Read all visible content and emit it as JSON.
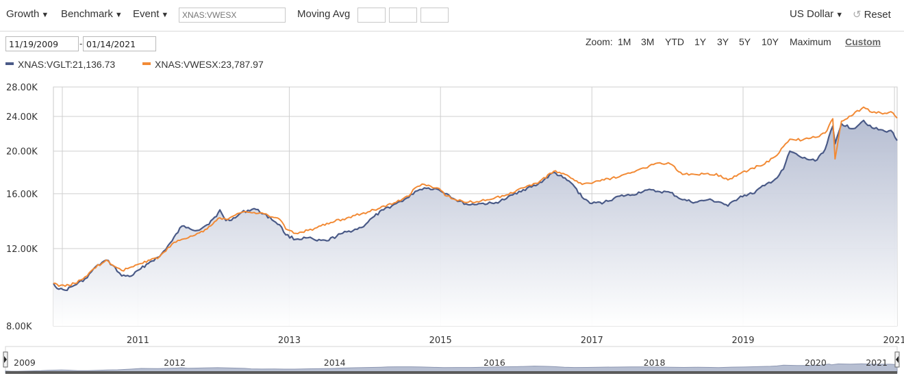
{
  "toolbar": {
    "growth_label": "Growth",
    "benchmark_label": "Benchmark",
    "event_label": "Event",
    "compare_placeholder": "XNAS:VWESX",
    "moving_avg_label": "Moving Avg",
    "currency_label": "US Dollar",
    "reset_label": "Reset"
  },
  "dates": {
    "start": "11/19/2009",
    "end": "01/14/2021",
    "separator": "-"
  },
  "zoom": {
    "label": "Zoom:",
    "options": [
      "1M",
      "3M",
      "YTD",
      "1Y",
      "3Y",
      "5Y",
      "10Y",
      "Maximum",
      "Custom"
    ],
    "active": "Custom"
  },
  "legend": [
    {
      "text": "XNAS:VGLT:21,136.73",
      "color": "#4a5a87"
    },
    {
      "text": "XNAS:VWESX:23,787.97",
      "color": "#f28a35"
    }
  ],
  "navigator": {
    "labels": [
      "2009",
      "2012",
      "2014",
      "2016",
      "2018",
      "2020",
      "2021"
    ]
  },
  "chart_data": {
    "type": "line",
    "x_scale": "time",
    "y_scale": "log",
    "ylim": [
      8000,
      28000
    ],
    "y_ticks": [
      "28.00K",
      "24.00K",
      "20.00K",
      "16.00K",
      "12.00K",
      "8.00K"
    ],
    "x_ticks": [
      "2011",
      "2013",
      "2015",
      "2017",
      "2019",
      "2021"
    ],
    "grid": true,
    "series": [
      {
        "name": "XNAS:VGLT",
        "color": "#4a5a87",
        "fill": "area",
        "points": [
          [
            "2009-11-19",
            10000
          ],
          [
            "2009-12-15",
            9700
          ],
          [
            "2010-01-15",
            9650
          ],
          [
            "2010-03-01",
            9900
          ],
          [
            "2010-05-01",
            10300
          ],
          [
            "2010-06-01",
            10800
          ],
          [
            "2010-08-01",
            11300
          ],
          [
            "2010-09-01",
            11000
          ],
          [
            "2010-10-15",
            10400
          ],
          [
            "2010-12-01",
            10400
          ],
          [
            "2011-01-15",
            10800
          ],
          [
            "2011-03-01",
            11200
          ],
          [
            "2011-04-15",
            11500
          ],
          [
            "2011-06-15",
            12500
          ],
          [
            "2011-08-01",
            13500
          ],
          [
            "2011-09-01",
            13400
          ],
          [
            "2011-10-15",
            13200
          ],
          [
            "2011-12-01",
            13600
          ],
          [
            "2012-01-15",
            14200
          ],
          [
            "2012-02-01",
            14700
          ],
          [
            "2012-03-01",
            13900
          ],
          [
            "2012-04-15",
            14100
          ],
          [
            "2012-05-15",
            14500
          ],
          [
            "2012-07-15",
            14800
          ],
          [
            "2012-09-01",
            14400
          ],
          [
            "2012-11-15",
            13600
          ],
          [
            "2012-12-15",
            12900
          ],
          [
            "2013-02-01",
            12600
          ],
          [
            "2013-04-01",
            12700
          ],
          [
            "2013-05-15",
            12500
          ],
          [
            "2013-07-01",
            12500
          ],
          [
            "2013-09-15",
            13000
          ],
          [
            "2013-12-15",
            13400
          ],
          [
            "2014-02-15",
            14200
          ],
          [
            "2014-04-01",
            14700
          ],
          [
            "2014-06-01",
            15200
          ],
          [
            "2014-08-01",
            15700
          ],
          [
            "2014-09-01",
            16200
          ],
          [
            "2014-10-15",
            16500
          ],
          [
            "2014-12-15",
            16400
          ],
          [
            "2015-02-01",
            16000
          ],
          [
            "2015-03-15",
            15500
          ],
          [
            "2015-05-15",
            15100
          ],
          [
            "2015-07-15",
            15200
          ],
          [
            "2015-09-15",
            15200
          ],
          [
            "2015-11-15",
            15600
          ],
          [
            "2016-01-15",
            16200
          ],
          [
            "2016-04-15",
            16800
          ],
          [
            "2016-07-01",
            17900
          ],
          [
            "2016-08-15",
            17400
          ],
          [
            "2016-10-01",
            16800
          ],
          [
            "2016-11-15",
            15700
          ],
          [
            "2017-01-01",
            15200
          ],
          [
            "2017-03-01",
            15300
          ],
          [
            "2017-05-15",
            15800
          ],
          [
            "2017-07-15",
            15900
          ],
          [
            "2017-09-15",
            16300
          ],
          [
            "2017-11-15",
            16200
          ],
          [
            "2018-01-15",
            16100
          ],
          [
            "2018-03-15",
            15500
          ],
          [
            "2018-05-15",
            15300
          ],
          [
            "2018-07-15",
            15500
          ],
          [
            "2018-09-15",
            15300
          ],
          [
            "2018-10-20",
            15000
          ],
          [
            "2018-12-20",
            15800
          ],
          [
            "2019-02-15",
            16000
          ],
          [
            "2019-04-15",
            16700
          ],
          [
            "2019-06-15",
            17400
          ],
          [
            "2019-07-15",
            18200
          ],
          [
            "2019-08-15",
            20000
          ],
          [
            "2019-10-15",
            19300
          ],
          [
            "2019-12-15",
            19000
          ],
          [
            "2020-02-01",
            20200
          ],
          [
            "2020-03-09",
            22800
          ],
          [
            "2020-03-20",
            20800
          ],
          [
            "2020-04-20",
            23100
          ],
          [
            "2020-06-15",
            22500
          ],
          [
            "2020-08-05",
            23500
          ],
          [
            "2020-09-15",
            22600
          ],
          [
            "2020-11-15",
            22200
          ],
          [
            "2020-12-15",
            22300
          ],
          [
            "2021-01-14",
            21136.73
          ]
        ]
      },
      {
        "name": "XNAS:VWESX",
        "color": "#f28a35",
        "fill": "none",
        "points": [
          [
            "2009-11-19",
            10000
          ],
          [
            "2009-12-15",
            9850
          ],
          [
            "2010-01-15",
            9850
          ],
          [
            "2010-03-01",
            10000
          ],
          [
            "2010-05-01",
            10400
          ],
          [
            "2010-06-01",
            10800
          ],
          [
            "2010-08-01",
            11300
          ],
          [
            "2010-09-01",
            11000
          ],
          [
            "2010-10-15",
            10700
          ],
          [
            "2010-12-01",
            10900
          ],
          [
            "2011-01-15",
            11100
          ],
          [
            "2011-03-01",
            11300
          ],
          [
            "2011-04-15",
            11500
          ],
          [
            "2011-06-15",
            12300
          ],
          [
            "2011-08-01",
            12600
          ],
          [
            "2011-09-01",
            12700
          ],
          [
            "2011-10-15",
            13000
          ],
          [
            "2011-12-01",
            13300
          ],
          [
            "2012-01-15",
            13900
          ],
          [
            "2012-02-01",
            14100
          ],
          [
            "2012-03-01",
            14000
          ],
          [
            "2012-04-15",
            14300
          ],
          [
            "2012-05-15",
            14500
          ],
          [
            "2012-07-15",
            14500
          ],
          [
            "2012-09-01",
            14400
          ],
          [
            "2012-11-15",
            14000
          ],
          [
            "2012-12-15",
            13300
          ],
          [
            "2013-02-01",
            13000
          ],
          [
            "2013-04-01",
            13200
          ],
          [
            "2013-05-15",
            13400
          ],
          [
            "2013-07-01",
            13700
          ],
          [
            "2013-09-15",
            14000
          ],
          [
            "2013-12-15",
            14400
          ],
          [
            "2014-02-15",
            14700
          ],
          [
            "2014-04-01",
            15000
          ],
          [
            "2014-06-01",
            15300
          ],
          [
            "2014-08-01",
            15800
          ],
          [
            "2014-09-01",
            16500
          ],
          [
            "2014-10-15",
            16800
          ],
          [
            "2014-12-15",
            16500
          ],
          [
            "2015-02-01",
            15800
          ],
          [
            "2015-03-15",
            15500
          ],
          [
            "2015-05-15",
            15300
          ],
          [
            "2015-07-15",
            15400
          ],
          [
            "2015-09-15",
            15600
          ],
          [
            "2015-11-15",
            15900
          ],
          [
            "2016-01-15",
            16400
          ],
          [
            "2016-04-15",
            16900
          ],
          [
            "2016-07-01",
            18000
          ],
          [
            "2016-08-15",
            17800
          ],
          [
            "2016-10-01",
            17300
          ],
          [
            "2016-11-15",
            16800
          ],
          [
            "2017-01-01",
            16900
          ],
          [
            "2017-03-01",
            17200
          ],
          [
            "2017-05-15",
            17500
          ],
          [
            "2017-07-15",
            17900
          ],
          [
            "2017-09-15",
            18300
          ],
          [
            "2017-11-15",
            18800
          ],
          [
            "2018-01-15",
            18700
          ],
          [
            "2018-03-15",
            17700
          ],
          [
            "2018-05-15",
            17700
          ],
          [
            "2018-07-15",
            17800
          ],
          [
            "2018-09-15",
            17600
          ],
          [
            "2018-10-20",
            17200
          ],
          [
            "2018-12-20",
            17800
          ],
          [
            "2019-02-15",
            18300
          ],
          [
            "2019-04-15",
            18700
          ],
          [
            "2019-06-15",
            19600
          ],
          [
            "2019-07-15",
            20500
          ],
          [
            "2019-08-15",
            21300
          ],
          [
            "2019-10-15",
            21200
          ],
          [
            "2019-12-15",
            21500
          ],
          [
            "2020-02-01",
            22000
          ],
          [
            "2020-03-09",
            23700
          ],
          [
            "2020-03-20",
            19200
          ],
          [
            "2020-04-20",
            23400
          ],
          [
            "2020-06-15",
            24200
          ],
          [
            "2020-08-05",
            25200
          ],
          [
            "2020-09-15",
            24500
          ],
          [
            "2020-11-15",
            24400
          ],
          [
            "2020-12-15",
            24600
          ],
          [
            "2021-01-14",
            23787.97
          ]
        ]
      }
    ]
  }
}
